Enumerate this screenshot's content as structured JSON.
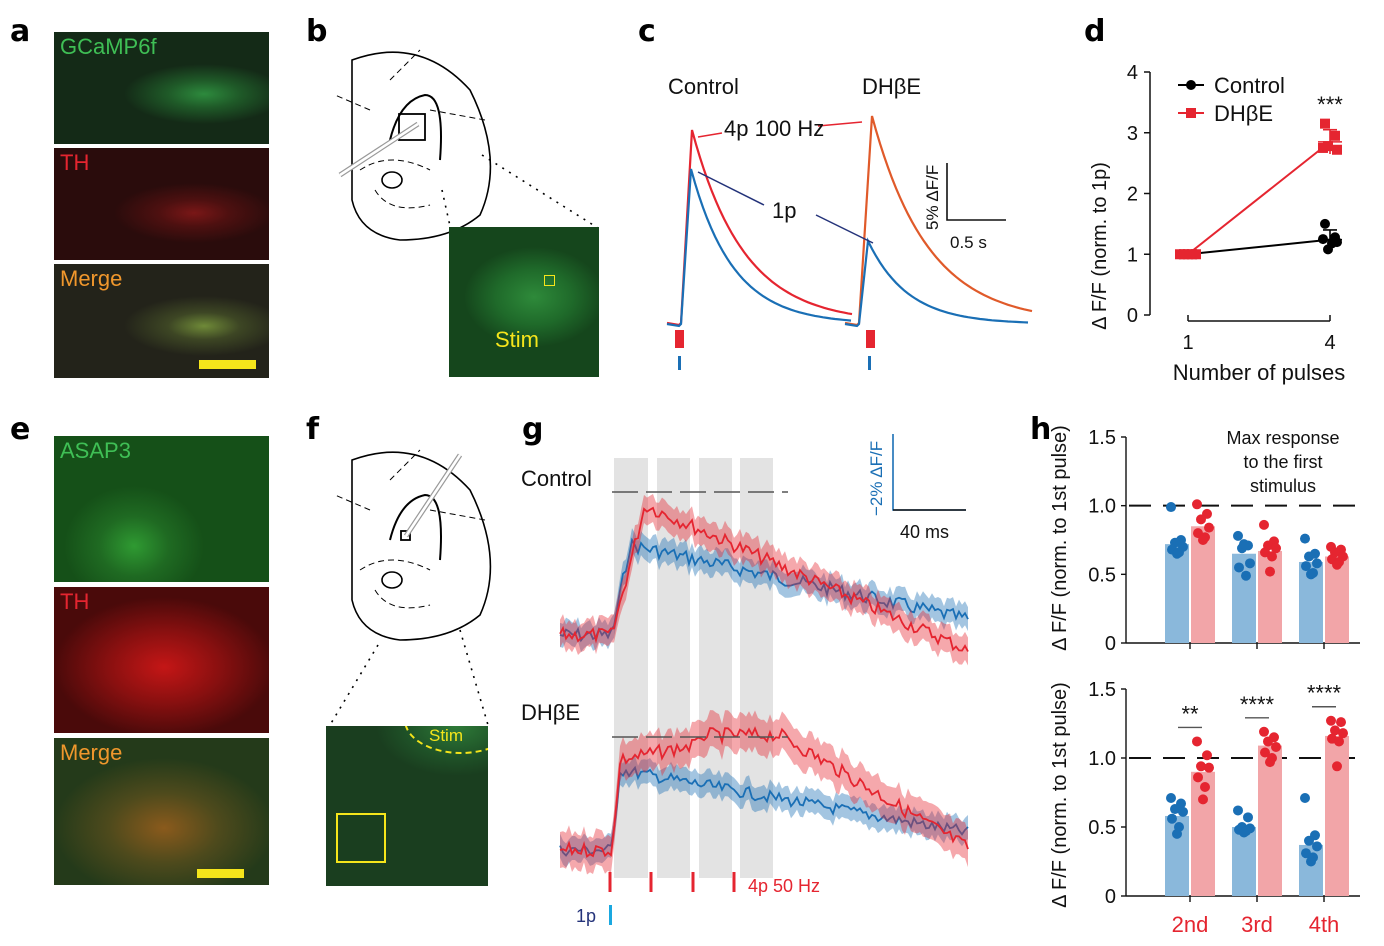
{
  "panels": {
    "a": {
      "letter": "a",
      "labels": [
        "GCaMP6f",
        "TH",
        "Merge"
      ]
    },
    "b": {
      "letter": "b",
      "stim_label": "Stim"
    },
    "c": {
      "letter": "c",
      "conditions": [
        "Control",
        "DHβE"
      ],
      "annot_4p": "4p 100 Hz",
      "annot_1p": "1p",
      "scale_y": "5% ΔF/F",
      "scale_x": "0.5 s"
    },
    "d": {
      "letter": "d"
    },
    "e": {
      "letter": "e",
      "labels": [
        "ASAP3",
        "TH",
        "Merge"
      ]
    },
    "f": {
      "letter": "f",
      "stim_label": "Stim"
    },
    "g": {
      "letter": "g",
      "conditions": [
        "Control",
        "DHβE"
      ],
      "scale_y": "−2% ΔF/F",
      "scale_x": "40 ms",
      "stim_4p": "4p 50 Hz",
      "stim_1p": "1p"
    },
    "h": {
      "letter": "h",
      "annotation": "Max response to the first stimulus",
      "annotation_lines": [
        "Max response",
        "to the first",
        "stimulus"
      ]
    }
  },
  "colors": {
    "control": "#1a6fb5",
    "dhbe": "#e52530",
    "bar_blue": "#8ab8db",
    "bar_red": "#f2a5a8",
    "scalebar": "#f5e51b"
  },
  "chart_data": [
    {
      "panel": "d",
      "type": "line",
      "title": "",
      "xlabel": "Number of pulses",
      "ylabel": "Δ F/F (norm. to 1p)",
      "x": [
        1,
        4
      ],
      "xticks": [
        "1",
        "4"
      ],
      "ylim": [
        0,
        4
      ],
      "yticks": [
        "0",
        "1",
        "2",
        "3",
        "4"
      ],
      "legend": "top-left",
      "series": [
        {
          "name": "Control",
          "marker": "circle",
          "mean": [
            1.0,
            1.24
          ],
          "err": [
            0,
            0.16
          ],
          "points_at_4": [
            1.5,
            1.28,
            1.25,
            1.2,
            1.08,
            1.18
          ]
        },
        {
          "name": "DHβE",
          "marker": "square",
          "mean": [
            1.0,
            2.85
          ],
          "err": [
            0,
            0.2
          ],
          "points_at_4": [
            3.15,
            2.95,
            2.75,
            2.72,
            2.78
          ]
        }
      ],
      "annotations": [
        {
          "x": 4,
          "text": "***"
        }
      ]
    },
    {
      "panel": "h-top",
      "type": "bar",
      "ylabel": "Δ F/F (norm. to 1st pulse)",
      "ylim": [
        0,
        1.5
      ],
      "yticks": [
        "0",
        "0.5",
        "1.0",
        "1.5"
      ],
      "reference_line": 1.0,
      "categories": [
        "2nd",
        "3rd",
        "4th"
      ],
      "series": [
        {
          "name": "Control",
          "values": [
            0.72,
            0.65,
            0.59
          ],
          "points": [
            [
              0.99,
              0.75,
              0.73,
              0.7,
              0.68,
              0.66,
              0.65
            ],
            [
              0.78,
              0.71,
              0.69,
              0.58,
              0.55,
              0.49,
              0.72
            ],
            [
              0.76,
              0.65,
              0.63,
              0.58,
              0.56,
              0.51,
              0.5
            ]
          ]
        },
        {
          "name": "DHβE",
          "values": [
            0.85,
            0.67,
            0.63
          ],
          "points": [
            [
              1.01,
              0.94,
              0.9,
              0.84,
              0.8,
              0.77,
              0.75
            ],
            [
              0.86,
              0.74,
              0.71,
              0.69,
              0.66,
              0.63,
              0.52
            ],
            [
              0.7,
              0.68,
              0.66,
              0.63,
              0.61,
              0.59,
              0.57
            ]
          ]
        }
      ],
      "annotations": []
    },
    {
      "panel": "h-bottom",
      "type": "bar",
      "ylabel": "Δ F/F (norm. to 1st pulse)",
      "ylim": [
        0,
        1.5
      ],
      "yticks": [
        "0",
        "0.5",
        "1.0",
        "1.5"
      ],
      "reference_line": 1.0,
      "categories": [
        "2nd",
        "3rd",
        "4th"
      ],
      "series": [
        {
          "name": "Control",
          "values": [
            0.58,
            0.5,
            0.37
          ],
          "points": [
            [
              0.71,
              0.67,
              0.63,
              0.61,
              0.56,
              0.5,
              0.45
            ],
            [
              0.62,
              0.57,
              0.5,
              0.49,
              0.48,
              0.47,
              0.46
            ],
            [
              0.71,
              0.44,
              0.4,
              0.36,
              0.31,
              0.28,
              0.25
            ]
          ]
        },
        {
          "name": "DHβE",
          "values": [
            0.9,
            1.09,
            1.16
          ],
          "points": [
            [
              1.12,
              1.02,
              0.94,
              0.93,
              0.86,
              0.79,
              0.7
            ],
            [
              1.19,
              1.15,
              1.12,
              1.08,
              1.04,
              1.0,
              0.97
            ],
            [
              1.27,
              1.26,
              1.2,
              1.18,
              1.14,
              1.12,
              0.94
            ]
          ]
        }
      ],
      "significance": [
        "**",
        "****",
        "****"
      ]
    }
  ]
}
